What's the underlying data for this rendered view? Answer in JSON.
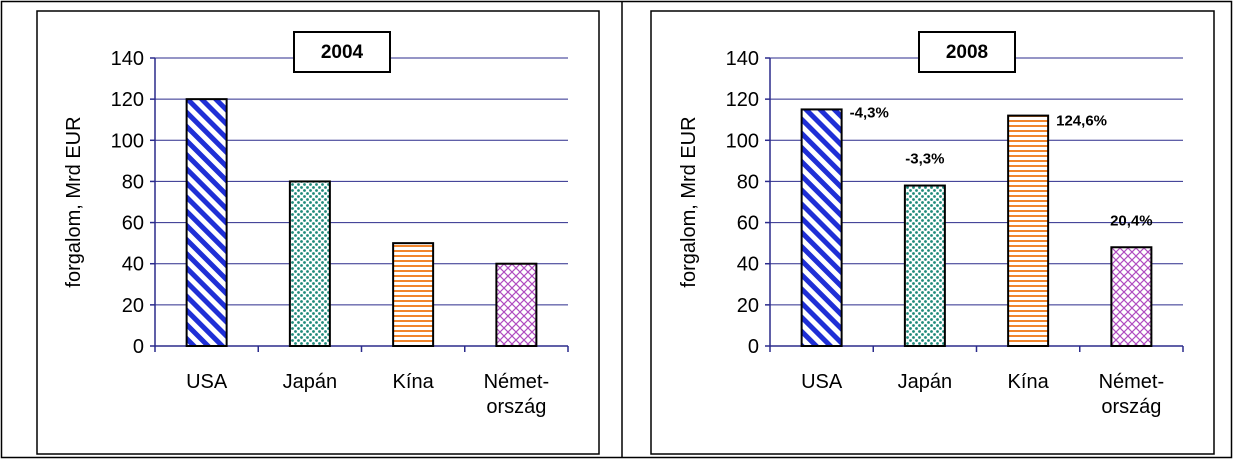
{
  "colors": {
    "usa": "#1f2fd6",
    "japan": "#1e8a7a",
    "china": "#f0852c",
    "germany": "#b04cc0",
    "plot_bg": "#ffffff",
    "grid": "#2b2b8c",
    "axis": "#2b2b8c"
  },
  "chart_data": [
    {
      "type": "bar",
      "title": "2004",
      "ylabel": "forgalom, Mrd EUR",
      "xlabel": "",
      "ylim": [
        0,
        140
      ],
      "yticks": [
        "0",
        "20",
        "40",
        "60",
        "80",
        "100",
        "120",
        "140"
      ],
      "grid": true,
      "categories": [
        [
          "USA"
        ],
        [
          "Japán"
        ],
        [
          "Kína"
        ],
        [
          "Német-",
          "ország"
        ]
      ],
      "values": [
        120,
        80,
        50,
        40
      ],
      "patterns": [
        "diagonal-stripes",
        "dots",
        "horizontal-stripes",
        "crosshatch"
      ],
      "data_labels": []
    },
    {
      "type": "bar",
      "title": "2008",
      "ylabel": "forgalom, Mrd EUR",
      "xlabel": "",
      "ylim": [
        0,
        140
      ],
      "yticks": [
        "0",
        "20",
        "40",
        "60",
        "80",
        "100",
        "120",
        "140"
      ],
      "grid": true,
      "categories": [
        [
          "USA"
        ],
        [
          "Japán"
        ],
        [
          "Kína"
        ],
        [
          "Német-",
          "ország"
        ]
      ],
      "values": [
        115,
        78,
        112,
        48
      ],
      "patterns": [
        "diagonal-stripes",
        "dots",
        "horizontal-stripes",
        "crosshatch"
      ],
      "data_labels": [
        "-4,3%",
        "-3,3%",
        "124,6%",
        "20,4%"
      ]
    }
  ]
}
